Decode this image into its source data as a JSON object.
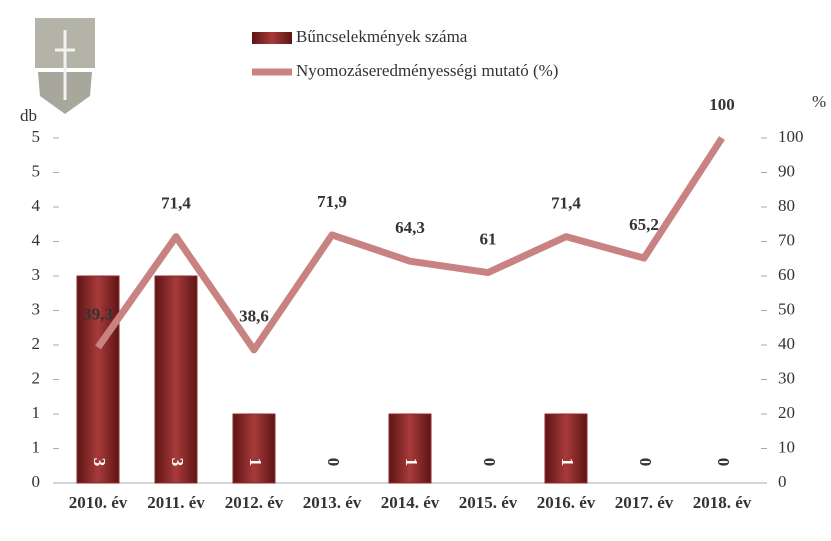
{
  "chart_data": {
    "type": "bar-line",
    "categories": [
      "2010. év",
      "2011. év",
      "2012. év",
      "2013. év",
      "2014. év",
      "2015. év",
      "2016. év",
      "2017. év",
      "2018. év"
    ],
    "series": [
      {
        "name": "Bűncselekmények száma",
        "type": "bar",
        "color": "#8e2a2a",
        "values": [
          3,
          3,
          1,
          0,
          1,
          0,
          1,
          0,
          0
        ]
      },
      {
        "name": "Nyomozáseredményességi mutató (%)",
        "type": "line",
        "axis": "y2",
        "color": "#c98282",
        "values": [
          39.3,
          71.4,
          38.6,
          71.9,
          64.3,
          61,
          71.4,
          65.2,
          100
        ],
        "value_labels": [
          "39,3",
          "71,4",
          "38,6",
          "71,9",
          "64,3",
          "61",
          "71,4",
          "65,2",
          "100"
        ]
      }
    ],
    "ylabel": "db",
    "y2label": "%",
    "ylim": [
      0,
      5
    ],
    "yticks": [
      0,
      {
        "value": 0.5,
        "label": "1"
      },
      1,
      {
        "value": 1.5,
        "label": "2"
      },
      2,
      {
        "value": 2.5,
        "label": "3"
      },
      3,
      {
        "value": 3.5,
        "label": "4"
      },
      4,
      {
        "value": 4.5,
        "label": "5"
      },
      5
    ],
    "y2lim": [
      0,
      100
    ],
    "y2ticks": [
      0,
      10,
      20,
      30,
      40,
      50,
      60,
      70,
      80,
      90,
      100
    ]
  }
}
